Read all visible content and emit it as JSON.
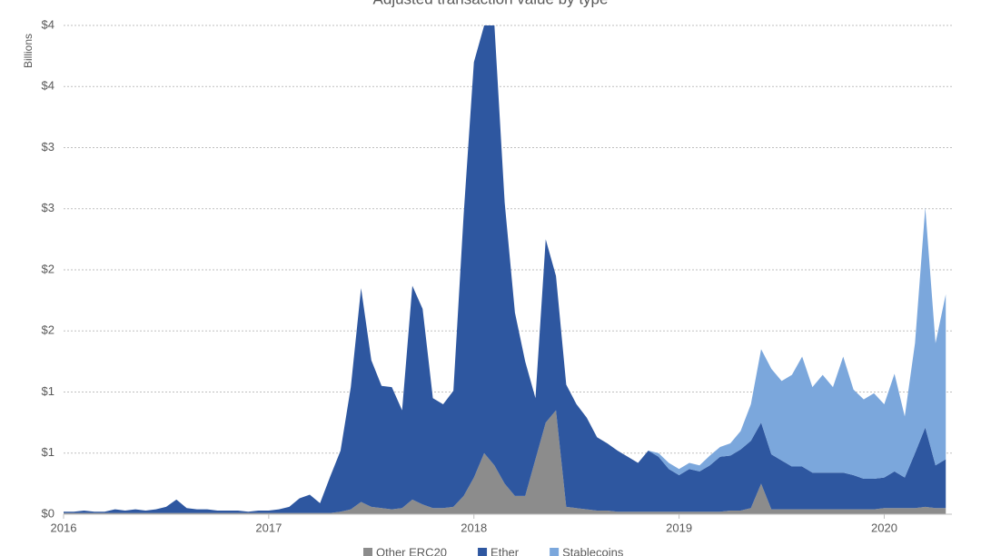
{
  "chart_data": {
    "type": "stacked-area",
    "title": "Adjusted transaction value by type",
    "ylabel": "Billions",
    "x": [
      2016,
      2016.05,
      2016.1,
      2016.15,
      2016.2,
      2016.25,
      2016.3,
      2016.35,
      2016.4,
      2016.45,
      2016.5,
      2016.55,
      2016.6,
      2016.65,
      2016.7,
      2016.75,
      2016.8,
      2016.85,
      2016.9,
      2016.95,
      2017,
      2017.05,
      2017.1,
      2017.15,
      2017.2,
      2017.25,
      2017.3,
      2017.35,
      2017.4,
      2017.45,
      2017.5,
      2017.55,
      2017.6,
      2017.65,
      2017.7,
      2017.75,
      2017.8,
      2017.85,
      2017.9,
      2017.95,
      2018,
      2018.05,
      2018.1,
      2018.15,
      2018.2,
      2018.25,
      2018.3,
      2018.35,
      2018.4,
      2018.45,
      2018.5,
      2018.55,
      2018.6,
      2018.65,
      2018.7,
      2018.75,
      2018.8,
      2018.85,
      2018.9,
      2018.95,
      2019,
      2019.05,
      2019.1,
      2019.15,
      2019.2,
      2019.25,
      2019.3,
      2019.35,
      2019.4,
      2019.45,
      2019.5,
      2019.55,
      2019.6,
      2019.65,
      2019.7,
      2019.75,
      2019.8,
      2019.85,
      2019.9,
      2019.95,
      2020,
      2020.05,
      2020.1,
      2020.15,
      2020.2,
      2020.25,
      2020.3
    ],
    "series": [
      {
        "name": "Other ERC20",
        "color": "#8c8c8c",
        "values": [
          0.01,
          0.01,
          0.01,
          0.01,
          0.01,
          0.01,
          0.01,
          0.01,
          0.01,
          0.01,
          0.01,
          0.01,
          0.01,
          0.01,
          0.01,
          0.01,
          0.01,
          0.01,
          0.01,
          0.01,
          0.01,
          0.01,
          0.01,
          0.01,
          0.01,
          0.01,
          0.01,
          0.02,
          0.04,
          0.1,
          0.06,
          0.05,
          0.04,
          0.05,
          0.12,
          0.08,
          0.05,
          0.05,
          0.06,
          0.15,
          0.3,
          0.5,
          0.4,
          0.25,
          0.15,
          0.15,
          0.45,
          0.75,
          0.85,
          0.06,
          0.05,
          0.04,
          0.03,
          0.03,
          0.02,
          0.02,
          0.02,
          0.02,
          0.02,
          0.02,
          0.02,
          0.02,
          0.02,
          0.02,
          0.02,
          0.03,
          0.03,
          0.05,
          0.25,
          0.04,
          0.04,
          0.04,
          0.04,
          0.04,
          0.04,
          0.04,
          0.04,
          0.04,
          0.04,
          0.04,
          0.05,
          0.05,
          0.05,
          0.05,
          0.06,
          0.05,
          0.05
        ]
      },
      {
        "name": "Ether",
        "color": "#2e57a0",
        "values": [
          0.01,
          0.01,
          0.02,
          0.01,
          0.01,
          0.03,
          0.02,
          0.03,
          0.02,
          0.03,
          0.05,
          0.11,
          0.04,
          0.03,
          0.03,
          0.02,
          0.02,
          0.02,
          0.01,
          0.02,
          0.02,
          0.03,
          0.05,
          0.12,
          0.15,
          0.08,
          0.3,
          0.5,
          1.0,
          1.75,
          1.2,
          1.0,
          1.0,
          0.8,
          1.75,
          1.6,
          0.9,
          0.85,
          0.95,
          2.3,
          3.4,
          3.5,
          3.6,
          2.3,
          1.5,
          1.1,
          0.5,
          1.5,
          1.1,
          1.0,
          0.85,
          0.75,
          0.6,
          0.55,
          0.5,
          0.45,
          0.4,
          0.5,
          0.45,
          0.35,
          0.3,
          0.35,
          0.33,
          0.38,
          0.45,
          0.45,
          0.5,
          0.55,
          0.5,
          0.45,
          0.4,
          0.35,
          0.35,
          0.3,
          0.3,
          0.3,
          0.3,
          0.28,
          0.25,
          0.25,
          0.25,
          0.3,
          0.25,
          0.45,
          0.65,
          0.35,
          0.4
        ]
      },
      {
        "name": "Stablecoins",
        "color": "#7ba7dc",
        "values": [
          0,
          0,
          0,
          0,
          0,
          0,
          0,
          0,
          0,
          0,
          0,
          0,
          0,
          0,
          0,
          0,
          0,
          0,
          0,
          0,
          0,
          0,
          0,
          0,
          0,
          0,
          0,
          0,
          0,
          0,
          0,
          0,
          0,
          0,
          0,
          0,
          0,
          0,
          0,
          0,
          0,
          0,
          0,
          0,
          0,
          0,
          0,
          0,
          0,
          0,
          0,
          0,
          0,
          0,
          0,
          0,
          0,
          0,
          0.03,
          0.05,
          0.05,
          0.05,
          0.05,
          0.08,
          0.08,
          0.1,
          0.15,
          0.3,
          0.6,
          0.7,
          0.65,
          0.75,
          0.9,
          0.7,
          0.8,
          0.7,
          0.95,
          0.7,
          0.65,
          0.7,
          0.6,
          0.8,
          0.5,
          0.9,
          1.8,
          1.0,
          1.35
        ]
      }
    ],
    "xlim": [
      2016,
      2020.33
    ],
    "xticks": [
      2016,
      2017,
      2018,
      2019,
      2020
    ],
    "ylim": [
      0,
      4
    ],
    "yticks": [
      {
        "value": 0,
        "label": "$0"
      },
      {
        "value": 0.5,
        "label": "$1"
      },
      {
        "value": 1,
        "label": "$1"
      },
      {
        "value": 1.5,
        "label": "$2"
      },
      {
        "value": 2,
        "label": "$2"
      },
      {
        "value": 2.5,
        "label": "$3"
      },
      {
        "value": 3,
        "label": "$3"
      },
      {
        "value": 3.5,
        "label": "$4"
      },
      {
        "value": 4,
        "label": "$4"
      }
    ],
    "grid": true,
    "legend": "bottom"
  }
}
